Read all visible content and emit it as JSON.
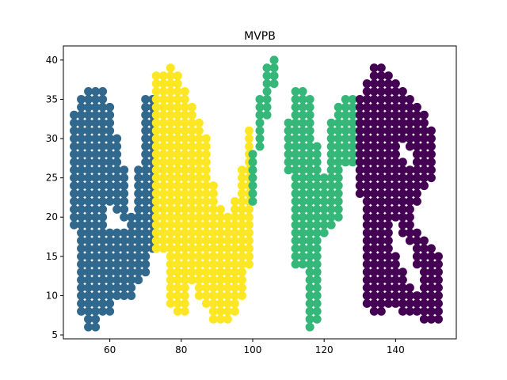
{
  "chart_data": {
    "type": "scatter",
    "title": "MVPB",
    "xlabel": "",
    "ylabel": "",
    "xlim": [
      47,
      157
    ],
    "ylim": [
      4.5,
      41.8
    ],
    "xticks": [
      60,
      80,
      100,
      120,
      140
    ],
    "yticks": [
      5,
      10,
      15,
      20,
      25,
      30,
      35,
      40
    ],
    "grid": false,
    "legend": "none",
    "series": [
      {
        "color": "#31688e",
        "letter": "M",
        "point_groups": [
          {
            "x": [
              54,
              56
            ],
            "y_ranges": [
              [
                6,
                36
              ]
            ]
          },
          {
            "x": [
              52
            ],
            "y_ranges": [
              [
                8,
                35
              ]
            ]
          },
          {
            "x": [
              58
            ],
            "y_ranges": [
              [
                8,
                36
              ]
            ]
          },
          {
            "x": [
              60
            ],
            "y_ranges": [
              [
                22,
                34
              ],
              [
                8,
                18
              ]
            ]
          },
          {
            "x": [
              50
            ],
            "y_ranges": [
              [
                19,
                33
              ]
            ]
          },
          {
            "x": [
              62
            ],
            "y_ranges": [
              [
                21,
                30
              ],
              [
                10,
                18
              ]
            ]
          },
          {
            "x": [
              64
            ],
            "y_ranges": [
              [
                20,
                26
              ],
              [
                10,
                18
              ]
            ]
          },
          {
            "x": [
              66
            ],
            "y_ranges": [
              [
                10,
                20
              ]
            ]
          },
          {
            "x": [
              68
            ],
            "y_ranges": [
              [
                12,
                26
              ]
            ]
          },
          {
            "x": [
              70
            ],
            "y_ranges": [
              [
                13,
                35
              ]
            ]
          },
          {
            "x": [
              72
            ],
            "y_ranges": [
              [
                16,
                35
              ]
            ]
          }
        ]
      },
      {
        "color": "#fde725",
        "letter": "V",
        "point_groups": [
          {
            "x": [
              73,
              75
            ],
            "y_ranges": [
              [
                16,
                38
              ]
            ]
          },
          {
            "x": [
              77
            ],
            "y_ranges": [
              [
                9,
                39
              ]
            ]
          },
          {
            "x": [
              79
            ],
            "y_ranges": [
              [
                8,
                38
              ]
            ]
          },
          {
            "x": [
              81
            ],
            "y_ranges": [
              [
                8,
                36
              ]
            ]
          },
          {
            "x": [
              83
            ],
            "y_ranges": [
              [
                12,
                34
              ]
            ]
          },
          {
            "x": [
              85
            ],
            "y_ranges": [
              [
                10,
                32
              ]
            ]
          },
          {
            "x": [
              87
            ],
            "y_ranges": [
              [
                9,
                30
              ]
            ]
          },
          {
            "x": [
              89
            ],
            "y_ranges": [
              [
                7,
                24
              ]
            ]
          },
          {
            "x": [
              91
            ],
            "y_ranges": [
              [
                7,
                21
              ]
            ]
          },
          {
            "x": [
              93
            ],
            "y_ranges": [
              [
                7,
                20
              ]
            ]
          },
          {
            "x": [
              95
            ],
            "y_ranges": [
              [
                8,
                22
              ]
            ]
          },
          {
            "x": [
              97
            ],
            "y_ranges": [
              [
                10,
                26
              ]
            ]
          },
          {
            "x": [
              99
            ],
            "y_ranges": [
              [
                14,
                31
              ]
            ]
          }
        ]
      },
      {
        "color": "#35b779",
        "letter": "P",
        "point_groups": [
          {
            "x": [
              100
            ],
            "y_ranges": [
              [
                22,
                28
              ]
            ]
          },
          {
            "x": [
              102
            ],
            "y_ranges": [
              [
                29,
                35
              ]
            ]
          },
          {
            "x": [
              104
            ],
            "y_ranges": [
              [
                33,
                39
              ]
            ]
          },
          {
            "x": [
              106
            ],
            "y_ranges": [
              [
                37,
                40
              ]
            ]
          },
          {
            "x": [
              110
            ],
            "y_ranges": [
              [
                26,
                32
              ]
            ]
          },
          {
            "x": [
              112,
              114
            ],
            "y_ranges": [
              [
                14,
                36
              ]
            ]
          },
          {
            "x": [
              116
            ],
            "y_ranges": [
              [
                6,
                35
              ]
            ]
          },
          {
            "x": [
              118
            ],
            "y_ranges": [
              [
                7,
                29
              ]
            ]
          },
          {
            "x": [
              120
            ],
            "y_ranges": [
              [
                18,
                25
              ]
            ]
          },
          {
            "x": [
              122
            ],
            "y_ranges": [
              [
                19,
                32
              ]
            ]
          },
          {
            "x": [
              124
            ],
            "y_ranges": [
              [
                20,
                34
              ]
            ]
          },
          {
            "x": [
              126,
              128
            ],
            "y_ranges": [
              [
                27,
                35
              ]
            ]
          }
        ]
      },
      {
        "color": "#440154",
        "letter": "B",
        "point_groups": [
          {
            "x": [
              130
            ],
            "y_ranges": [
              [
                23,
                35
              ]
            ]
          },
          {
            "x": [
              132
            ],
            "y_ranges": [
              [
                9,
                37
              ]
            ]
          },
          {
            "x": [
              134,
              136
            ],
            "y_ranges": [
              [
                8,
                39
              ]
            ]
          },
          {
            "x": [
              138
            ],
            "y_ranges": [
              [
                9,
                38
              ]
            ]
          },
          {
            "x": [
              140
            ],
            "y_ranges": [
              [
                9,
                15
              ],
              [
                20,
                33
              ],
              [
                25,
                37
              ]
            ]
          },
          {
            "x": [
              142
            ],
            "y_ranges": [
              [
                8,
                13
              ],
              [
                18,
                27
              ],
              [
                30,
                36
              ]
            ]
          },
          {
            "x": [
              144
            ],
            "y_ranges": [
              [
                8,
                11
              ],
              [
                17,
                26
              ],
              [
                29,
                35
              ]
            ]
          },
          {
            "x": [
              146
            ],
            "y_ranges": [
              [
                8,
                10
              ],
              [
                14,
                18
              ],
              [
                22,
                34
              ]
            ]
          },
          {
            "x": [
              148
            ],
            "y_ranges": [
              [
                7,
                17
              ],
              [
                24,
                33
              ]
            ]
          },
          {
            "x": [
              150
            ],
            "y_ranges": [
              [
                7,
                16
              ],
              [
                25,
                31
              ]
            ]
          },
          {
            "x": [
              152
            ],
            "y_ranges": [
              [
                7,
                15
              ]
            ]
          }
        ]
      }
    ]
  }
}
